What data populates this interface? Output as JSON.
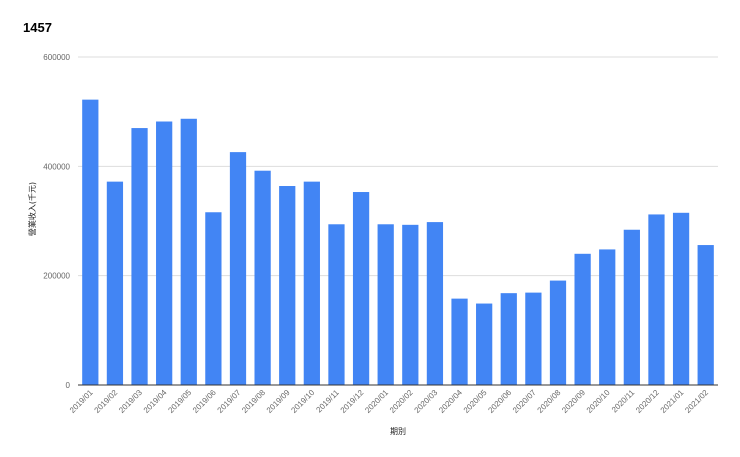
{
  "chart_data": {
    "type": "bar",
    "title": "1457",
    "xlabel": "期別",
    "ylabel": "營業收入(千元)",
    "ylim": [
      0,
      600000
    ],
    "yticks": [
      "0",
      "200000",
      "400000",
      "600000"
    ],
    "ytick_values": [
      0,
      200000,
      400000,
      600000
    ],
    "grid": true,
    "legend": "none",
    "bar_color": "#4285f4",
    "categories": [
      "2019/01",
      "2019/02",
      "2019/03",
      "2019/04",
      "2019/05",
      "2019/06",
      "2019/07",
      "2019/08",
      "2019/09",
      "2019/10",
      "2019/11",
      "2019/12",
      "2020/01",
      "2020/02",
      "2020/03",
      "2020/04",
      "2020/05",
      "2020/06",
      "2020/07",
      "2020/08",
      "2020/09",
      "2020/10",
      "2020/11",
      "2020/12",
      "2021/01",
      "2021/02"
    ],
    "values": [
      522000,
      372000,
      470000,
      482000,
      487000,
      316000,
      426000,
      392000,
      364000,
      372000,
      294000,
      353000,
      294000,
      293000,
      298000,
      158000,
      149000,
      168000,
      169000,
      191000,
      240000,
      248000,
      284000,
      312000,
      315000,
      256000
    ]
  }
}
